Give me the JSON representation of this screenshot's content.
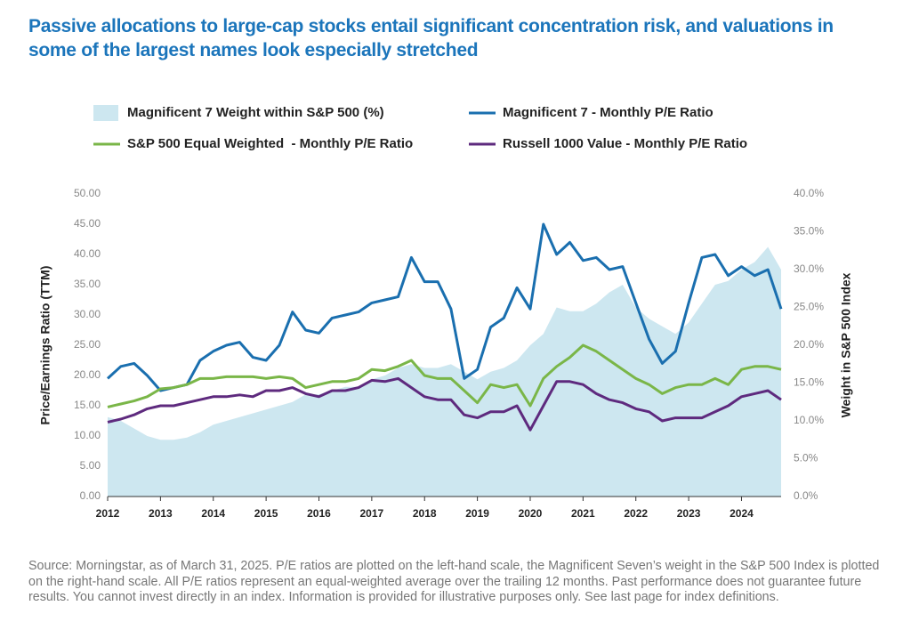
{
  "chart_data": {
    "type": "line",
    "title": "Passive allocations to large-cap stocks entail significant concentration risk, and valuations in some of the largest names look especially stretched",
    "ylabel": "Price/Earnings Ratio (TTM)",
    "y2label": "Weight in S&P 500 Index",
    "source": "Source: Morningstar, as of March 31, 2025. P/E ratios are plotted on the left-hand scale, the Magnificent Seven’s weight in the S&P 500 Index is plotted on the right-hand scale. All P/E ratios represent an equal-weighted average over the trailing 12 months. Past performance does not guarantee future results. You cannot invest directly in an index. Information is provided for illustrative purposes only. See last page for index definitions.",
    "x": [
      2012,
      2012.25,
      2012.5,
      2012.75,
      2013,
      2013.25,
      2013.5,
      2013.75,
      2014,
      2014.25,
      2014.5,
      2014.75,
      2015,
      2015.25,
      2015.5,
      2015.75,
      2016,
      2016.25,
      2016.5,
      2016.75,
      2017,
      2017.25,
      2017.5,
      2017.75,
      2018,
      2018.25,
      2018.5,
      2018.75,
      2019,
      2019.25,
      2019.5,
      2019.75,
      2020,
      2020.25,
      2020.5,
      2020.75,
      2021,
      2021.25,
      2021.5,
      2021.75,
      2022,
      2022.25,
      2022.5,
      2022.75,
      2023,
      2023.25,
      2023.5,
      2023.75,
      2024,
      2024.25,
      2024.5,
      2024.75
    ],
    "xlim": [
      2012,
      2024.75
    ],
    "xticks": [
      2012,
      2013,
      2014,
      2015,
      2016,
      2017,
      2018,
      2019,
      2020,
      2021,
      2022,
      2023,
      2024
    ],
    "ylim": [
      0,
      50
    ],
    "yticks": [
      {
        "value": 0,
        "label": "0.00"
      },
      {
        "value": 5,
        "label": "5.00"
      },
      {
        "value": 10,
        "label": "10.00"
      },
      {
        "value": 15,
        "label": "15.00"
      },
      {
        "value": 20,
        "label": "20.00"
      },
      {
        "value": 25,
        "label": "25.00"
      },
      {
        "value": 30,
        "label": "30.00"
      },
      {
        "value": 35,
        "label": "35.00"
      },
      {
        "value": 40,
        "label": "40.00"
      },
      {
        "value": 45,
        "label": "45.00"
      },
      {
        "value": 50,
        "label": "50.00"
      }
    ],
    "y2lim": [
      0,
      40
    ],
    "y2ticks": [
      {
        "value": 0,
        "label": "0.0%"
      },
      {
        "value": 5,
        "label": "5.0%"
      },
      {
        "value": 10,
        "label": "10.0%"
      },
      {
        "value": 15,
        "label": "15.0%"
      },
      {
        "value": 20,
        "label": "20.0%"
      },
      {
        "value": 25,
        "label": "25.0%"
      },
      {
        "value": 30,
        "label": "30.0%"
      },
      {
        "value": 35,
        "label": "35.0%"
      },
      {
        "value": 40,
        "label": "40.0%"
      }
    ],
    "grid": false,
    "series": [
      {
        "name": "Magnificent 7 Weight within S&P 500 (%)",
        "color": "#cde7f0",
        "kind": "area",
        "axis": "y2",
        "values": [
          10.5,
          10,
          9,
          8,
          7.5,
          7.5,
          7.8,
          8.5,
          9.5,
          10,
          10.5,
          11,
          11.5,
          12,
          12.5,
          13.5,
          13.5,
          14,
          14.5,
          14.5,
          15.5,
          16,
          17,
          17.5,
          17,
          17,
          17.5,
          16.5,
          15.5,
          16.5,
          17,
          18,
          20,
          21.5,
          25,
          24.5,
          24.5,
          25.5,
          27,
          28,
          25,
          23.5,
          22.5,
          21.5,
          23,
          25.5,
          28,
          28.5,
          30,
          31,
          33,
          30
        ]
      },
      {
        "name": "Magnificent 7 - Monthly P/E Ratio",
        "color": "#1a6faf",
        "values": [
          19.5,
          21.5,
          22,
          20,
          17.5,
          18,
          18.5,
          22.5,
          24,
          25,
          25.5,
          23,
          22.5,
          25,
          30.5,
          27.5,
          27,
          29.5,
          30,
          30.5,
          32,
          32.5,
          33,
          39.5,
          35.5,
          35.5,
          31,
          19.5,
          21,
          28,
          29.5,
          34.5,
          31,
          45,
          40,
          42,
          39,
          39.5,
          37.5,
          38,
          32,
          26,
          22,
          24,
          32,
          39.5,
          40,
          36.5,
          38,
          36.5,
          37.5,
          31
        ]
      },
      {
        "name": "S&P 500 Equal Weighted  - Monthly P/E Ratio",
        "color": "#7ab648",
        "values": [
          14.8,
          15.3,
          15.8,
          16.5,
          17.8,
          18,
          18.5,
          19.5,
          19.5,
          19.8,
          19.8,
          19.8,
          19.5,
          19.8,
          19.5,
          18,
          18.5,
          19,
          19,
          19.5,
          21,
          20.8,
          21.5,
          22.5,
          20,
          19.5,
          19.5,
          17.5,
          15.5,
          18.5,
          18,
          18.5,
          15,
          19.5,
          21.5,
          23,
          25,
          24,
          22.5,
          21,
          19.5,
          18.5,
          17,
          18,
          18.5,
          18.5,
          19.5,
          18.5,
          21,
          21.5,
          21.5,
          21
        ]
      },
      {
        "name": "Russell 1000 Value - Monthly P/E Ratio",
        "color": "#5e2a7e",
        "values": [
          12.3,
          12.8,
          13.5,
          14.5,
          15,
          15,
          15.5,
          16,
          16.5,
          16.5,
          16.8,
          16.5,
          17.5,
          17.5,
          18,
          17,
          16.5,
          17.5,
          17.5,
          18,
          19.2,
          19,
          19.5,
          18,
          16.5,
          16,
          16,
          13.5,
          13,
          14,
          14,
          15,
          11,
          15,
          19,
          19,
          18.5,
          17,
          16,
          15.5,
          14.5,
          14,
          12.5,
          13,
          13,
          13,
          14,
          15,
          16.5,
          17,
          17.5,
          16
        ]
      }
    ]
  }
}
